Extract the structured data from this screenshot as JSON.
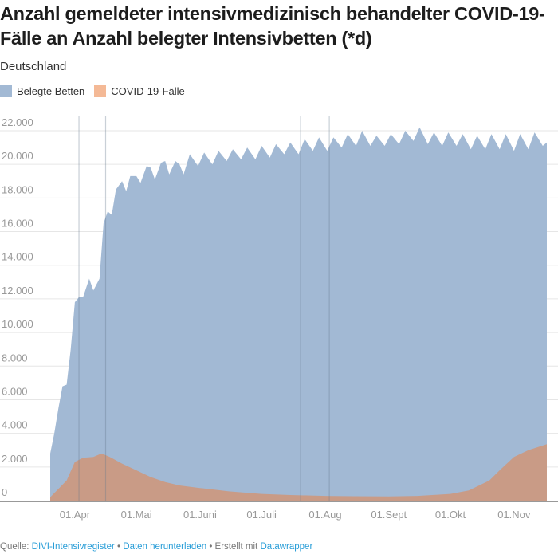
{
  "chart_data": {
    "type": "area",
    "title": "Anzahl gemeldeter intensivmedizinisch behandelter COVID-19-Fälle an Anzahl belegter Intensivbetten (*d)",
    "subtitle": "Deutschland",
    "ylim": [
      0,
      22000
    ],
    "yticks": [
      "0",
      "2.000",
      "4.000",
      "6.000",
      "8.000",
      "10.000",
      "12.000",
      "14.000",
      "16.000",
      "18.000",
      "20.000",
      "22.000"
    ],
    "ytick_values": [
      0,
      2000,
      4000,
      6000,
      8000,
      10000,
      12000,
      14000,
      16000,
      18000,
      20000,
      22000
    ],
    "xlim": [
      "2020-03-20",
      "2020-11-17"
    ],
    "xticks": [
      {
        "date": "2020-04-01",
        "label": "01.Apr"
      },
      {
        "date": "2020-05-01",
        "label": "01.Mai"
      },
      {
        "date": "2020-06-01",
        "label": "01.Juni"
      },
      {
        "date": "2020-07-01",
        "label": "01.Juli"
      },
      {
        "date": "2020-08-01",
        "label": "01.Aug"
      },
      {
        "date": "2020-09-01",
        "label": "01.Sept"
      },
      {
        "date": "2020-10-01",
        "label": "01.Okt"
      },
      {
        "date": "2020-11-01",
        "label": "01.Nov"
      }
    ],
    "grid": true,
    "legend_placement": "top-left",
    "reference_lines": [
      "2020-04-03",
      "2020-04-16",
      "2020-07-20",
      "2020-08-03"
    ],
    "series": [
      {
        "name": "Belegte Betten",
        "color": "#a2b9d4",
        "points": [
          [
            "2020-03-20",
            2800
          ],
          [
            "2020-03-22",
            4000
          ],
          [
            "2020-03-24",
            5500
          ],
          [
            "2020-03-26",
            6800
          ],
          [
            "2020-03-28",
            6900
          ],
          [
            "2020-03-30",
            9000
          ],
          [
            "2020-04-01",
            11800
          ],
          [
            "2020-04-03",
            12100
          ],
          [
            "2020-04-05",
            12100
          ],
          [
            "2020-04-08",
            13200
          ],
          [
            "2020-04-10",
            12500
          ],
          [
            "2020-04-13",
            13200
          ],
          [
            "2020-04-15",
            16500
          ],
          [
            "2020-04-17",
            17200
          ],
          [
            "2020-04-19",
            17000
          ],
          [
            "2020-04-21",
            18500
          ],
          [
            "2020-04-24",
            19000
          ],
          [
            "2020-04-26",
            18400
          ],
          [
            "2020-04-28",
            19300
          ],
          [
            "2020-05-01",
            19300
          ],
          [
            "2020-05-03",
            18900
          ],
          [
            "2020-05-06",
            19900
          ],
          [
            "2020-05-08",
            19800
          ],
          [
            "2020-05-10",
            19100
          ],
          [
            "2020-05-13",
            20100
          ],
          [
            "2020-05-15",
            20200
          ],
          [
            "2020-05-17",
            19400
          ],
          [
            "2020-05-20",
            20200
          ],
          [
            "2020-05-22",
            20000
          ],
          [
            "2020-05-24",
            19400
          ],
          [
            "2020-05-27",
            20600
          ],
          [
            "2020-05-31",
            19900
          ],
          [
            "2020-06-03",
            20700
          ],
          [
            "2020-06-07",
            20000
          ],
          [
            "2020-06-10",
            20800
          ],
          [
            "2020-06-14",
            20200
          ],
          [
            "2020-06-17",
            20900
          ],
          [
            "2020-06-21",
            20300
          ],
          [
            "2020-06-24",
            21000
          ],
          [
            "2020-06-28",
            20300
          ],
          [
            "2020-07-01",
            21100
          ],
          [
            "2020-07-05",
            20400
          ],
          [
            "2020-07-08",
            21200
          ],
          [
            "2020-07-12",
            20600
          ],
          [
            "2020-07-15",
            21300
          ],
          [
            "2020-07-19",
            20600
          ],
          [
            "2020-07-22",
            21500
          ],
          [
            "2020-07-26",
            20800
          ],
          [
            "2020-07-29",
            21600
          ],
          [
            "2020-08-02",
            20800
          ],
          [
            "2020-08-05",
            21600
          ],
          [
            "2020-08-09",
            21000
          ],
          [
            "2020-08-12",
            21800
          ],
          [
            "2020-08-16",
            21100
          ],
          [
            "2020-08-19",
            22000
          ],
          [
            "2020-08-23",
            21100
          ],
          [
            "2020-08-26",
            21700
          ],
          [
            "2020-08-30",
            21100
          ],
          [
            "2020-09-02",
            21800
          ],
          [
            "2020-09-06",
            21200
          ],
          [
            "2020-09-09",
            22000
          ],
          [
            "2020-09-13",
            21400
          ],
          [
            "2020-09-16",
            22200
          ],
          [
            "2020-09-20",
            21200
          ],
          [
            "2020-09-23",
            21900
          ],
          [
            "2020-09-27",
            21100
          ],
          [
            "2020-09-30",
            21900
          ],
          [
            "2020-10-04",
            21100
          ],
          [
            "2020-10-07",
            21800
          ],
          [
            "2020-10-11",
            20900
          ],
          [
            "2020-10-14",
            21700
          ],
          [
            "2020-10-18",
            20900
          ],
          [
            "2020-10-21",
            21800
          ],
          [
            "2020-10-25",
            20900
          ],
          [
            "2020-10-28",
            21800
          ],
          [
            "2020-11-01",
            20800
          ],
          [
            "2020-11-04",
            21800
          ],
          [
            "2020-11-08",
            20900
          ],
          [
            "2020-11-11",
            21900
          ],
          [
            "2020-11-15",
            21100
          ],
          [
            "2020-11-17",
            21300
          ]
        ]
      },
      {
        "name": "COVID-19-Fälle",
        "color": "#f4b996",
        "overlap_color": "#c99b86",
        "points": [
          [
            "2020-03-20",
            200
          ],
          [
            "2020-03-24",
            700
          ],
          [
            "2020-03-28",
            1200
          ],
          [
            "2020-04-01",
            2300
          ],
          [
            "2020-04-05",
            2550
          ],
          [
            "2020-04-10",
            2600
          ],
          [
            "2020-04-14",
            2800
          ],
          [
            "2020-04-18",
            2600
          ],
          [
            "2020-04-24",
            2200
          ],
          [
            "2020-05-01",
            1800
          ],
          [
            "2020-05-08",
            1400
          ],
          [
            "2020-05-15",
            1100
          ],
          [
            "2020-05-22",
            900
          ],
          [
            "2020-06-01",
            750
          ],
          [
            "2020-06-15",
            550
          ],
          [
            "2020-07-01",
            400
          ],
          [
            "2020-07-15",
            330
          ],
          [
            "2020-08-01",
            280
          ],
          [
            "2020-08-15",
            260
          ],
          [
            "2020-09-01",
            250
          ],
          [
            "2020-09-15",
            280
          ],
          [
            "2020-10-01",
            400
          ],
          [
            "2020-10-10",
            600
          ],
          [
            "2020-10-20",
            1200
          ],
          [
            "2020-10-25",
            1800
          ],
          [
            "2020-11-01",
            2600
          ],
          [
            "2020-11-08",
            3000
          ],
          [
            "2020-11-17",
            3350
          ]
        ]
      }
    ]
  },
  "footer": {
    "source_label": "Quelle:",
    "source_link": "DIVI-Intensivregister",
    "sep1": "•",
    "download_link": "Daten herunterladen",
    "sep2": "• Erstellt mit",
    "tool_link": "Datawrapper"
  }
}
